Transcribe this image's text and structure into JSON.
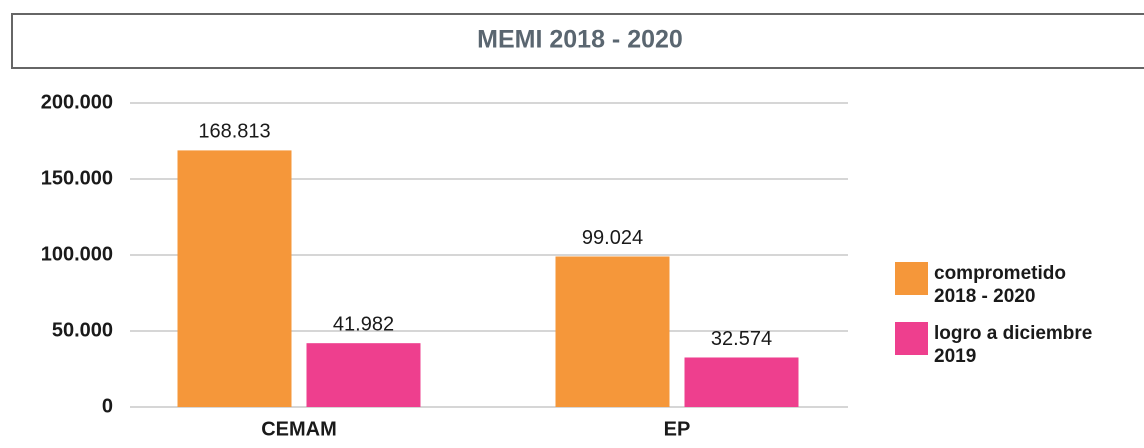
{
  "chart_data": {
    "type": "bar",
    "title": "MEMI 2018 - 2020",
    "categories": [
      "CEMAM",
      "EP"
    ],
    "series": [
      {
        "name": "comprometido 2018 - 2020",
        "color": "#f5973a",
        "values": [
          168813,
          99024
        ],
        "value_labels": [
          "168.813",
          "99.024"
        ]
      },
      {
        "name": "logro a diciembre 2019",
        "color": "#ee3f8e",
        "values": [
          41982,
          32574
        ],
        "value_labels": [
          "41.982",
          "32.574"
        ]
      }
    ],
    "ylim": [
      0,
      200000
    ],
    "yticks": [
      0,
      {
        "value": 50000,
        "label": "50.000"
      },
      {
        "value": 100000,
        "label": "100.000"
      },
      {
        "value": 150000,
        "label": "150.000"
      },
      {
        "value": 200000,
        "label": "200.000"
      }
    ],
    "grid": true,
    "legend": "right"
  }
}
